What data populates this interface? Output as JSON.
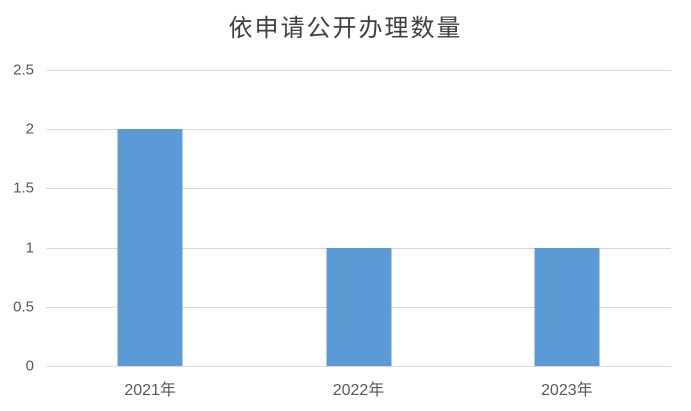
{
  "chart_data": {
    "type": "bar",
    "title": "依申请公开办理数量",
    "categories": [
      "2021年",
      "2022年",
      "2023年"
    ],
    "values": [
      2,
      1,
      1
    ],
    "xlabel": "",
    "ylabel": "",
    "ylim": [
      0,
      2.5
    ],
    "yticks": [
      0,
      0.5,
      1,
      1.5,
      2,
      2.5
    ],
    "grid": true,
    "legend_position": "none",
    "bar_color": "#5B9BD5",
    "gridline_color": "#D9D9D9",
    "axis_line_color": "#D9D9D9",
    "tick_label_color": "#595959",
    "title_color": "#404040",
    "background_color": "#FFFFFF"
  }
}
